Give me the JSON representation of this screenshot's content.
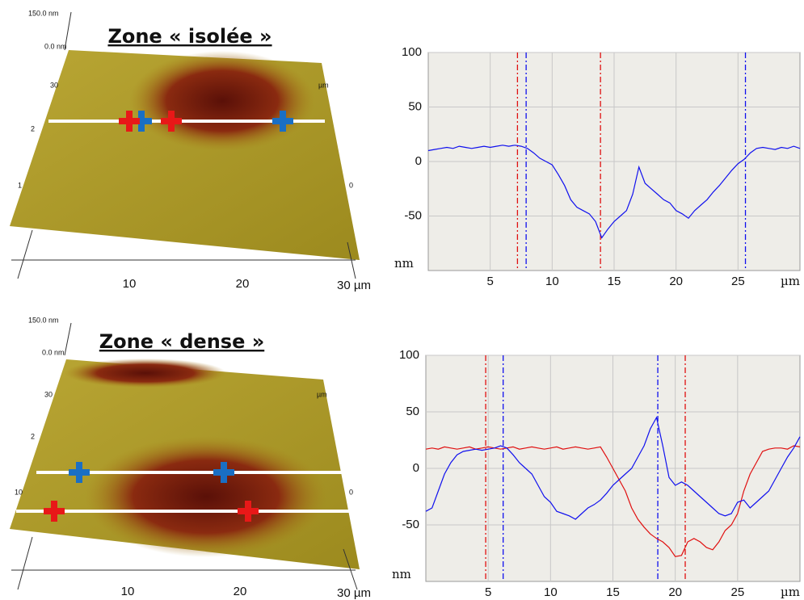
{
  "images": [
    {
      "title": "Zone « isolée »",
      "z_top": "150.0 nm",
      "z_zero": "0.0 nm",
      "x_labels": [
        "10",
        "20",
        "30 µm"
      ],
      "left_labels": [
        "30",
        "2",
        "1"
      ],
      "right_labels": [
        "µm",
        "0"
      ]
    },
    {
      "title": "Zone « dense »",
      "z_top": "150.0 nm",
      "z_zero": "0.0 nm",
      "x_labels": [
        "10",
        "20",
        "30 µm"
      ],
      "left_labels": [
        "30",
        "2",
        "10"
      ],
      "right_labels": [
        "µm",
        "0"
      ]
    }
  ],
  "chart_data": [
    {
      "type": "line",
      "xlabel": "µm",
      "ylabel": "nm",
      "xlim": [
        0,
        30
      ],
      "ylim": [
        -100,
        100
      ],
      "xticks": [
        5,
        10,
        15,
        20,
        25
      ],
      "yticks": [
        100,
        50,
        0,
        -50
      ],
      "grid": true,
      "x": [
        0,
        0.5,
        1,
        1.5,
        2,
        2.5,
        3,
        3.5,
        4,
        4.5,
        5,
        5.5,
        6,
        6.5,
        7,
        7.5,
        8,
        8.5,
        9,
        9.5,
        10,
        10.5,
        11,
        11.5,
        12,
        12.5,
        13,
        13.5,
        14,
        14.5,
        15,
        15.5,
        16,
        16.5,
        17,
        17.5,
        18,
        18.5,
        19,
        19.5,
        20,
        20.5,
        21,
        21.5,
        22,
        22.5,
        23,
        23.5,
        24,
        24.5,
        25,
        25.5,
        26,
        26.5,
        27,
        27.5,
        28,
        28.5,
        29,
        29.5,
        30
      ],
      "series": [
        {
          "color": "#1010ee",
          "values": [
            10,
            11,
            12,
            13,
            12,
            14,
            13,
            12,
            13,
            14,
            13,
            14,
            15,
            14,
            15,
            14,
            12,
            8,
            3,
            0,
            -3,
            -12,
            -22,
            -35,
            -42,
            -45,
            -48,
            -55,
            -70,
            -62,
            -55,
            -50,
            -45,
            -30,
            -5,
            -20,
            -25,
            -30,
            -35,
            -38,
            -45,
            -48,
            -52,
            -45,
            -40,
            -35,
            -28,
            -22,
            -15,
            -8,
            -2,
            2,
            8,
            12,
            13,
            12,
            11,
            13,
            12,
            14,
            12
          ]
        }
      ],
      "vlines": [
        {
          "x": 7.2,
          "color": "#e01010"
        },
        {
          "x": 7.9,
          "color": "#1010ee"
        },
        {
          "x": 13.9,
          "color": "#e01010"
        },
        {
          "x": 25.6,
          "color": "#1010ee"
        }
      ]
    },
    {
      "type": "line",
      "xlabel": "µm",
      "ylabel": "nm",
      "xlim": [
        0,
        30
      ],
      "ylim": [
        -100,
        100
      ],
      "xticks": [
        5,
        10,
        15,
        20,
        25
      ],
      "yticks": [
        100,
        50,
        0,
        -50
      ],
      "grid": true,
      "x": [
        0,
        0.5,
        1,
        1.5,
        2,
        2.5,
        3,
        3.5,
        4,
        4.5,
        5,
        5.5,
        6,
        6.5,
        7,
        7.5,
        8,
        8.5,
        9,
        9.5,
        10,
        10.5,
        11,
        11.5,
        12,
        12.5,
        13,
        13.5,
        14,
        14.5,
        15,
        15.5,
        16,
        16.5,
        17,
        17.5,
        18,
        18.5,
        19,
        19.5,
        20,
        20.5,
        21,
        21.5,
        22,
        22.5,
        23,
        23.5,
        24,
        24.5,
        25,
        25.5,
        26,
        26.5,
        27,
        27.5,
        28,
        28.5,
        29,
        29.5,
        30
      ],
      "series": [
        {
          "color": "#e01010",
          "values": [
            17,
            18,
            17,
            19,
            18,
            17,
            18,
            19,
            17,
            18,
            19,
            18,
            17,
            18,
            19,
            17,
            18,
            19,
            18,
            17,
            18,
            19,
            17,
            18,
            19,
            18,
            17,
            18,
            19,
            10,
            0,
            -10,
            -20,
            -35,
            -45,
            -52,
            -58,
            -62,
            -65,
            -70,
            -78,
            -77,
            -65,
            -62,
            -65,
            -70,
            -72,
            -65,
            -55,
            -50,
            -40,
            -20,
            -5,
            5,
            15,
            17,
            18,
            18,
            17,
            20,
            19
          ]
        },
        {
          "color": "#1010ee",
          "values": [
            -38,
            -35,
            -20,
            -5,
            5,
            12,
            15,
            16,
            17,
            16,
            17,
            18,
            20,
            18,
            12,
            5,
            0,
            -5,
            -15,
            -25,
            -30,
            -38,
            -40,
            -42,
            -45,
            -40,
            -35,
            -32,
            -28,
            -22,
            -15,
            -10,
            -5,
            0,
            10,
            20,
            35,
            45,
            20,
            -8,
            -15,
            -12,
            -15,
            -20,
            -25,
            -30,
            -35,
            -40,
            -42,
            -40,
            -30,
            -28,
            -35,
            -30,
            -25,
            -20,
            -10,
            0,
            10,
            18,
            28
          ]
        }
      ],
      "vlines": [
        {
          "x": 4.8,
          "color": "#e01010"
        },
        {
          "x": 6.2,
          "color": "#1010ee"
        },
        {
          "x": 18.6,
          "color": "#1010ee"
        },
        {
          "x": 20.8,
          "color": "#e01010"
        }
      ]
    }
  ]
}
